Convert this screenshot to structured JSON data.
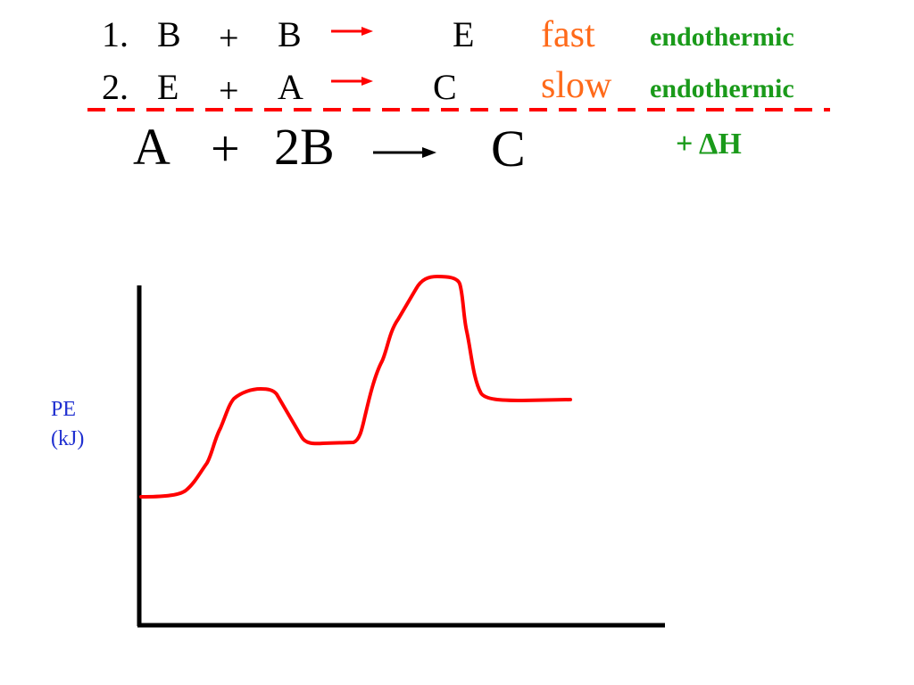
{
  "colors": {
    "text": "#000000",
    "rate": "#ff6a1a",
    "thermo": "#1a9a1a",
    "reaction_lines": "#ff0000",
    "axis_label": "#1f2fd0",
    "axes": "#000000"
  },
  "mechanism": {
    "steps": [
      {
        "number": "1.",
        "reactant1": "B",
        "plus": "+",
        "reactant2": "B",
        "product": "E",
        "rate": "fast",
        "thermo": "endothermic"
      },
      {
        "number": "2.",
        "reactant1": "E",
        "plus": "+",
        "reactant2": "A",
        "product": "C",
        "rate": "slow",
        "thermo": "endothermic"
      }
    ],
    "overall": {
      "reactant1": "A",
      "plus": "+",
      "reactant2": "2B",
      "product": "C",
      "enthalpy": "+ ΔH"
    }
  },
  "diagram": {
    "y_axis_label_line1": "PE",
    "y_axis_label_line2": "(kJ)",
    "arrow_icon": "right-arrow-icon"
  }
}
